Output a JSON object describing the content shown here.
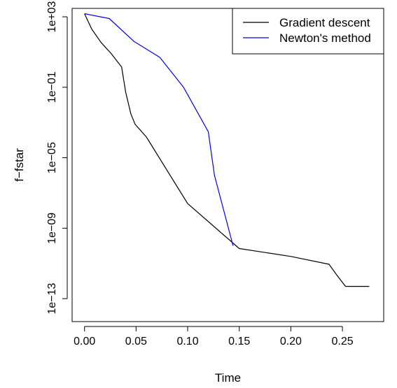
{
  "chart_data": {
    "type": "line",
    "title": "",
    "xlabel": "Time",
    "ylabel": "f−fstar",
    "y_scale": "log10",
    "xlim": [
      -0.012,
      0.29
    ],
    "ylim": [
      5e-15,
      3000.0
    ],
    "x_ticks": [
      0.0,
      0.05,
      0.1,
      0.15,
      0.2,
      0.25
    ],
    "x_tick_labels": [
      "0.00",
      "0.05",
      "0.10",
      "0.15",
      "0.20",
      "0.25"
    ],
    "y_ticks": [
      1000.0,
      0.1,
      1e-05,
      1e-09,
      1e-13
    ],
    "y_tick_labels": [
      "1e+03",
      "1e−01",
      "1e−05",
      "1e−09",
      "1e−13"
    ],
    "grid": false,
    "legend": {
      "position": "top-right"
    },
    "series": [
      {
        "name": "Gradient descent",
        "color": "#000000",
        "x": [
          0.0,
          0.007,
          0.016,
          0.026,
          0.036,
          0.04,
          0.045,
          0.049,
          0.06,
          0.1,
          0.15,
          0.2,
          0.237,
          0.245,
          0.253,
          0.276
        ],
        "y": [
          1500,
          200,
          35,
          8,
          1.4,
          0.05,
          0.003,
          0.0008,
          0.00015,
          2.5e-08,
          7e-11,
          2.5e-11,
          9e-12,
          2e-12,
          5e-13,
          5e-13
        ]
      },
      {
        "name": "Newton's method",
        "color": "#0000ee",
        "x": [
          0.0,
          0.024,
          0.048,
          0.073,
          0.096,
          0.12,
          0.126,
          0.144
        ],
        "y": [
          1500,
          800,
          40,
          5,
          0.1,
          0.0003,
          1e-06,
          1e-10
        ]
      }
    ]
  }
}
